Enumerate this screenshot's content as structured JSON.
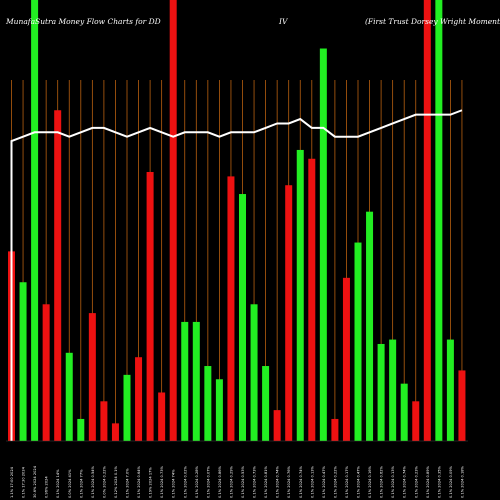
{
  "title": {
    "left": "MunafaSutra  Money Flow  Charts for DD",
    "middle": "IV",
    "right": "(First Trust Dorsey Wright Momentum"
  },
  "colors": {
    "background": "#000000",
    "up": "#22ee22",
    "down": "#ee1111",
    "line": "#ffffff",
    "grid": "#b86010"
  },
  "chart_data": {
    "type": "bar",
    "ylim": [
      0,
      100
    ],
    "grid": true,
    "categories": [
      "1.1% 17:00 2024",
      "0.1% 17:30 2024",
      "30.6% 2024 2024",
      "0.96% 2024",
      "0.1% 2024 14%",
      "0.0% 2024 41%",
      "0.1% 2024 77%",
      "0.1% 2024 0.54%",
      "0.0% 2024 0.22%",
      "0.12% 2024 0.1%",
      "0.1% 2024 7.0%",
      "0.1% 2024 0.64%",
      "0.19% 2024 17%",
      "0.1% 2024 0.73%",
      "0.1% 2024 74%",
      "0.1% 2024 0.02%",
      "0.1% 2024 0.28%",
      "0.1% 2024 0.07%",
      "0.1% 2024 0.86%",
      "0.1% 2024 0.29%",
      "0.1% 2024 0.53%",
      "0.1% 2024 0.73%",
      "0.1% 2024 0.81%",
      "0.1% 2024 0.74%",
      "0.1% 2024 0.76%",
      "0.1% 2024 0.74%",
      "0.1% 2024 0.13%",
      "0.1% 2024 0.47%",
      "0.1% 2024 0.22%",
      "0.1% 2024 0.17%",
      "0.1% 2024 0.47%",
      "0.1% 2024 0.16%",
      "0.1% 2024 0.62%",
      "0.1% 2024 0.13%",
      "0.1% 2024 0.74%",
      "0.1% 2024 0.23%",
      "0.1% 2024 0.89%",
      "0.1% 2024 0.35%",
      "0.1% 2024 0.09%",
      "0.1% 2024 0.18%"
    ],
    "series": [
      {
        "values": [
          43,
          36,
          100,
          31,
          75,
          20,
          5,
          29,
          9,
          4,
          15,
          19,
          61,
          11,
          100,
          27,
          27,
          17,
          14,
          60,
          56,
          31,
          17,
          7,
          58,
          66,
          64,
          89,
          5,
          37,
          45,
          52,
          22,
          23,
          13,
          9,
          100,
          100,
          23,
          16
        ]
      },
      {
        "values": [
          68,
          69,
          70,
          70,
          70,
          69,
          70,
          71,
          71,
          70,
          69,
          70,
          71,
          70,
          69,
          70,
          70,
          70,
          69,
          70,
          70,
          70,
          71,
          72,
          72,
          73,
          71,
          71,
          69,
          69,
          69,
          70,
          71,
          72,
          73,
          74,
          74,
          74,
          74,
          75
        ]
      }
    ],
    "bar_direction": [
      "down",
      "up",
      "up",
      "down",
      "down",
      "up",
      "up",
      "down",
      "down",
      "down",
      "up",
      "down",
      "down",
      "down",
      "down",
      "up",
      "up",
      "up",
      "up",
      "down",
      "up",
      "up",
      "up",
      "down",
      "down",
      "up",
      "down",
      "up",
      "down",
      "down",
      "up",
      "up",
      "up",
      "up",
      "up",
      "down",
      "down",
      "up",
      "up",
      "down"
    ]
  }
}
